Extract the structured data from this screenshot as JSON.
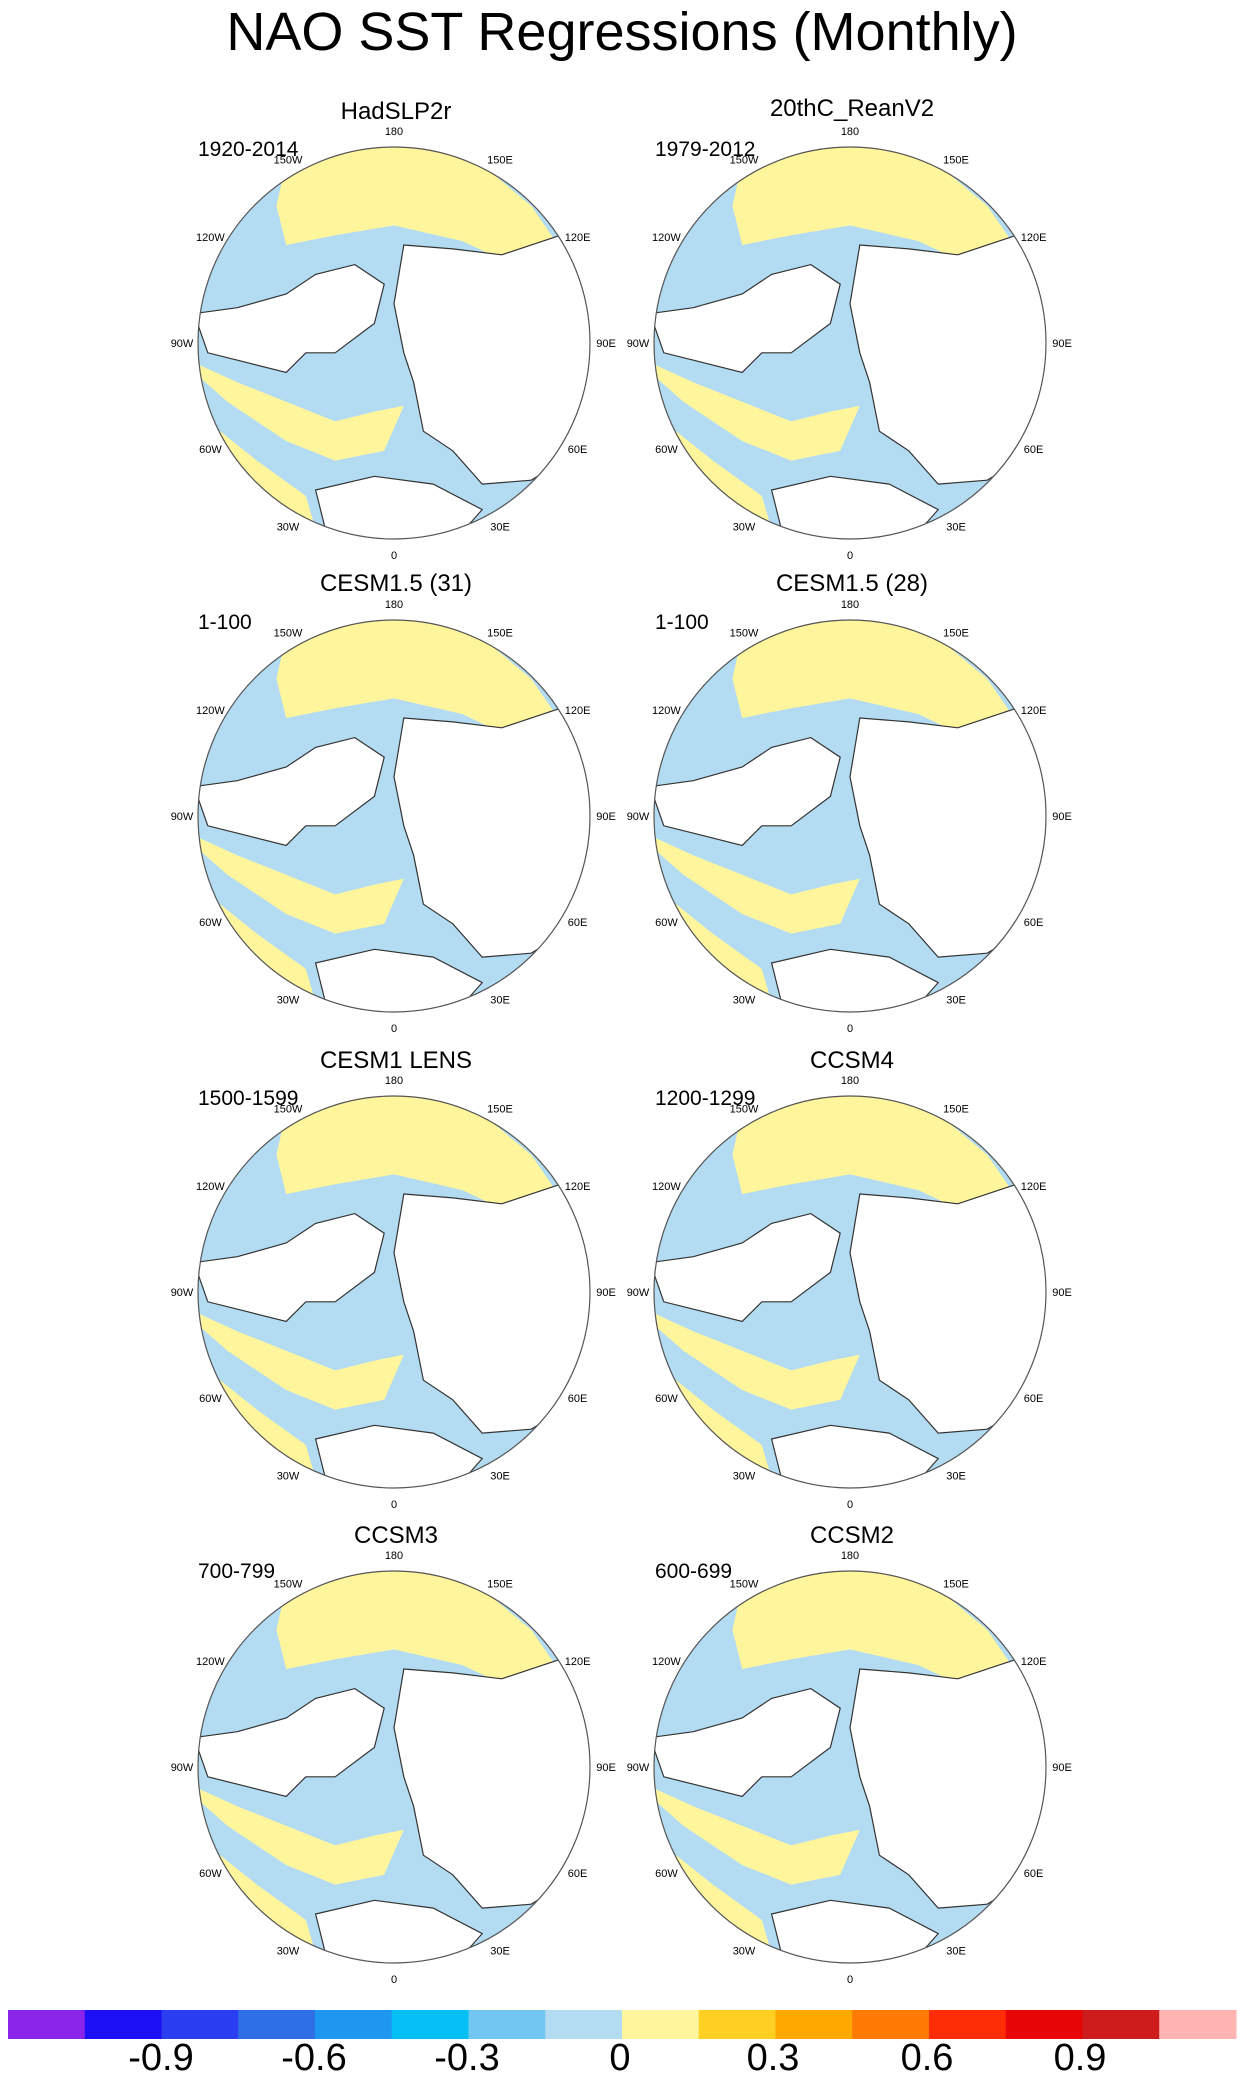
{
  "title": "NAO SST Regressions (Monthly)",
  "panels": [
    {
      "title": "HadSLP2r",
      "period": "1920-2014"
    },
    {
      "title": "20thC_ReanV2",
      "period": "1979-2012"
    },
    {
      "title": "CESM1.5 (31)",
      "period": "1-100"
    },
    {
      "title": "CESM1.5 (28)",
      "period": "1-100"
    },
    {
      "title": "CESM1 LENS",
      "period": "1500-1599"
    },
    {
      "title": "CCSM4",
      "period": "1200-1299"
    },
    {
      "title": "CCSM3",
      "period": "700-799"
    },
    {
      "title": "CCSM2",
      "period": "600-699"
    }
  ],
  "longitude_labels": [
    "180",
    "150E",
    "120E",
    "90E",
    "60E",
    "30E",
    "0",
    "30W",
    "60W",
    "90W",
    "120W",
    "150W"
  ],
  "colors": {
    "land": "#ffffff",
    "positive_small": "#fff59d",
    "negative_small": "#b3dcf2",
    "coast": "#333333"
  },
  "colorbar": {
    "colors": [
      "#8a24e8",
      "#1c0ff5",
      "#2a3df0",
      "#2f6fe6",
      "#1e97f0",
      "#06c0f5",
      "#6fc7f2",
      "#b3dcf2",
      "#fff59d",
      "#ffd021",
      "#ffa800",
      "#ff7b05",
      "#ff2d05",
      "#e80505",
      "#ce1c1c",
      "#ffb3b3"
    ],
    "labels": [
      "-0.9",
      "-0.6",
      "-0.3",
      "0",
      "0.3",
      "0.6",
      "0.9"
    ]
  }
}
